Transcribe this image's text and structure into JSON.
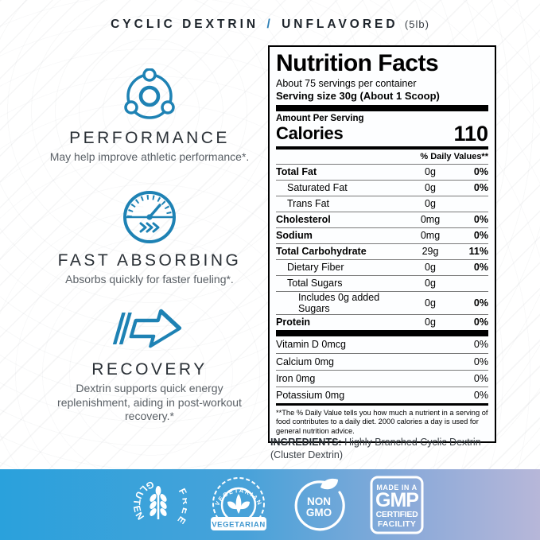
{
  "header": {
    "product": "CYCLIC DEXTRIN",
    "separator": "/",
    "flavor": "UNFLAVORED",
    "size": "(5lb)"
  },
  "features": [
    {
      "icon": "molecule-icon",
      "title": "PERFORMANCE",
      "description": "May help improve athletic performance*."
    },
    {
      "icon": "gauge-icon",
      "title": "FAST ABSORBING",
      "description": "Absorbs quickly for faster fueling*."
    },
    {
      "icon": "speed-arrow-icon",
      "title": "RECOVERY",
      "description": "Dextrin supports quick energy replenishment, aiding in post-workout recovery.*"
    }
  ],
  "nutrition": {
    "title": "Nutrition Facts",
    "servings_per_container": "About 75 servings per container",
    "serving_size": "Serving size 30g (About 1 Scoop)",
    "amount_per_serving": "Amount Per Serving",
    "calories_label": "Calories",
    "calories_value": "110",
    "daily_values_header": "% Daily Values**",
    "rows": [
      {
        "label": "Total Fat",
        "amount": "0g",
        "dv": "0%",
        "bold": true,
        "indent": 0
      },
      {
        "label": "Saturated Fat",
        "amount": "0g",
        "dv": "0%",
        "bold": false,
        "indent": 1
      },
      {
        "label": "Trans Fat",
        "amount": "0g",
        "dv": "",
        "bold": false,
        "indent": 1
      },
      {
        "label": "Cholesterol",
        "amount": "0mg",
        "dv": "0%",
        "bold": true,
        "indent": 0
      },
      {
        "label": "Sodium",
        "amount": "0mg",
        "dv": "0%",
        "bold": true,
        "indent": 0
      },
      {
        "label": "Total Carbohydrate",
        "amount": "29g",
        "dv": "11%",
        "bold": true,
        "indent": 0
      },
      {
        "label": "Dietary Fiber",
        "amount": "0g",
        "dv": "0%",
        "bold": false,
        "indent": 1
      },
      {
        "label": "Total Sugars",
        "amount": "0g",
        "dv": "",
        "bold": false,
        "indent": 1
      },
      {
        "label": "Includes 0g added Sugars",
        "amount": "0g",
        "dv": "0%",
        "bold": false,
        "indent": 2
      },
      {
        "label": "Protein",
        "amount": "0g",
        "dv": "0%",
        "bold": true,
        "indent": 0
      }
    ],
    "vitamins": [
      {
        "label": "Vitamin D 0mcg",
        "dv": "0%"
      },
      {
        "label": "Calcium 0mg",
        "dv": "0%"
      },
      {
        "label": "Iron 0mg",
        "dv": "0%"
      },
      {
        "label": "Potassium 0mg",
        "dv": "0%"
      }
    ],
    "footnote": "**The % Daily Value tells you how much a nutrient in a serving of food contributes to a daily diet. 2000 calories a day is used for general nutrition advice."
  },
  "ingredients": {
    "label": "INGREDIENTS:",
    "text": " Highly Branched Cyclic Dextrin (Cluster Dextrin)"
  },
  "badges": {
    "gluten_free": {
      "word1": "GLUTEN",
      "word2": "FREE"
    },
    "vegetarian": {
      "arc": "VEGETARIAN",
      "banner": "VEGETARIAN"
    },
    "non_gmo": {
      "line1": "NON",
      "line2": "GMO"
    },
    "gmp": {
      "line1": "MADE IN A",
      "line2": "GMP",
      "line3": "CERTIFIED",
      "line4": "FACILITY"
    }
  },
  "colors": {
    "accent_blue": "#1e82b4",
    "footer_gradient_start": "#2aa1dc",
    "footer_gradient_end": "#b7b7d9",
    "text_dark": "#1d242b"
  }
}
